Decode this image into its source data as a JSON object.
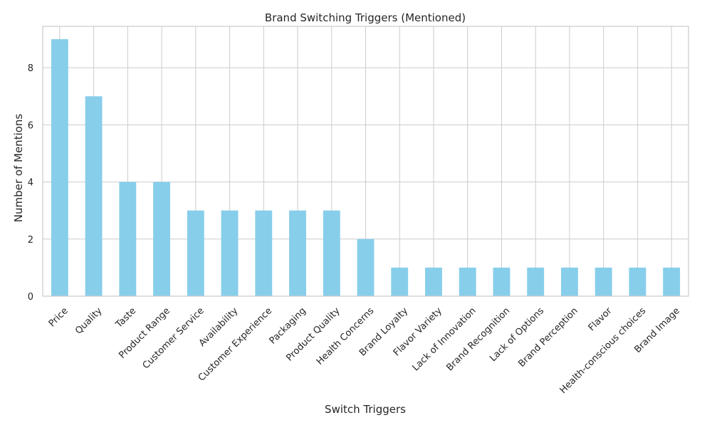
{
  "chart_data": {
    "type": "bar",
    "title": "Brand Switching Triggers (Mentioned)",
    "xlabel": "Switch Triggers",
    "ylabel": "Number of Mentions",
    "categories": [
      "Price",
      "Quality",
      "Taste",
      "Product Range",
      "Customer Service",
      "Availability",
      "Customer Experience",
      "Packaging",
      "Product Quality",
      "Health Concerns",
      "Brand Loyalty",
      "Flavor Variety",
      "Lack of Innovation",
      "Brand Recognition",
      "Lack of Options",
      "Brand Perception",
      "Flavor",
      "Health-conscious choices",
      "Brand Image"
    ],
    "values": [
      9,
      7,
      4,
      4,
      3,
      3,
      3,
      3,
      3,
      2,
      1,
      1,
      1,
      1,
      1,
      1,
      1,
      1,
      1
    ],
    "ylim": [
      0,
      9.45
    ],
    "yticks": [
      0,
      2,
      4,
      6,
      8
    ],
    "grid": true,
    "x_tick_rotation": 45,
    "colors": {
      "bar": "#87ceeb",
      "grid": "#cccccc",
      "axes_edge": "#cccccc",
      "text": "#262626"
    }
  }
}
